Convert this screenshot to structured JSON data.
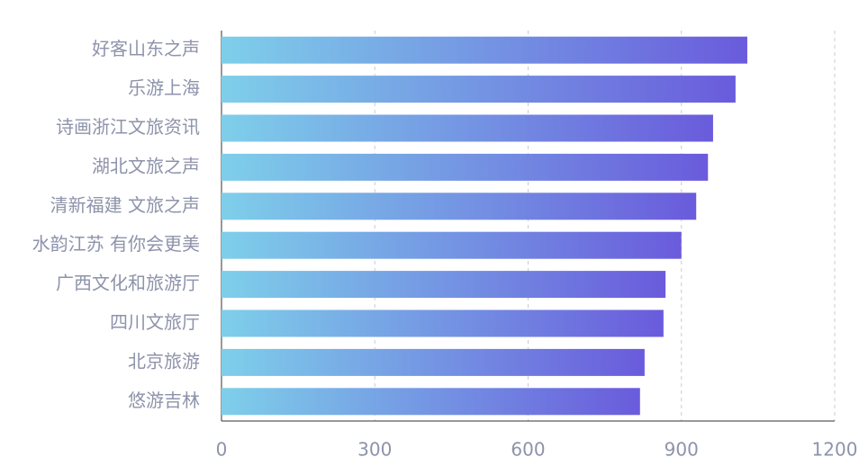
{
  "chart_data": {
    "type": "bar",
    "orientation": "horizontal",
    "categories": [
      "好客山东之声",
      "乐游上海",
      "诗画浙江文旅资讯",
      "湖北文旅之声",
      "清新福建 文旅之声",
      "水韵江苏 有你会更美",
      "广西文化和旅游厅",
      "四川文旅厅",
      "北京旅游",
      "悠游吉林"
    ],
    "values": [
      1029,
      1006,
      962,
      952,
      929,
      900,
      869,
      865,
      828,
      819
    ],
    "colors": [
      "#7ecfea",
      "#6a5bdc"
    ],
    "xlim": [
      0,
      1200
    ],
    "xticks": [
      0,
      300,
      600,
      900,
      1200
    ],
    "grid": true
  }
}
